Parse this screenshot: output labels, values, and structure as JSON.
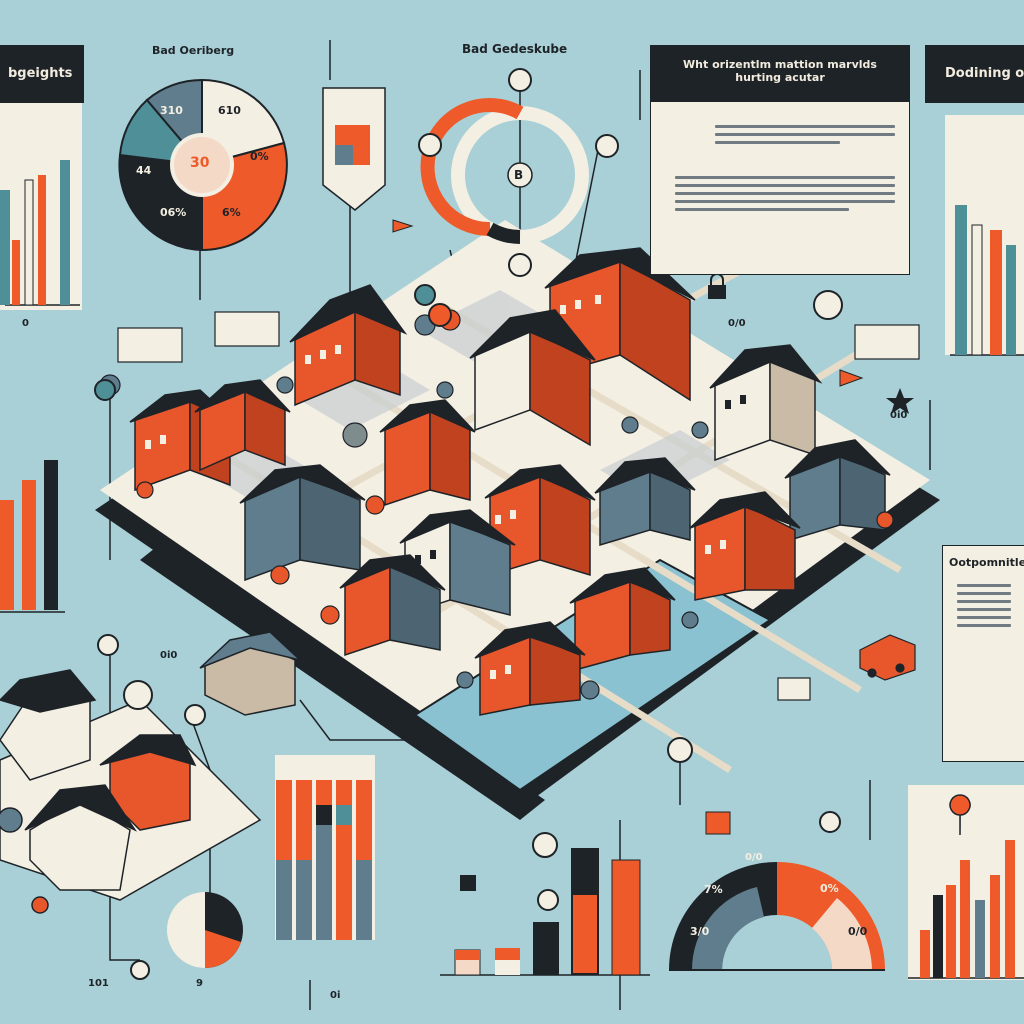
{
  "top_labels": {
    "left_pie_title": "Bad Oeriberg",
    "center_title": "Bad Gedeskube",
    "corner_left": "bgeights",
    "corner_right": "Dodining of",
    "right_section": "Ootpomnitles"
  },
  "info_card": {
    "title_line1": "Wht orizentlm mattion marvlds",
    "title_line2": "hurting acutar"
  },
  "left_pie": {
    "center": "30",
    "labels": [
      "310",
      "610",
      "44",
      "0%",
      "06%",
      "6%"
    ]
  },
  "ring": {
    "center": "B"
  },
  "semi_gauge": {
    "labels": [
      "0/0",
      "7%",
      "0%",
      "3/0",
      "0/0"
    ]
  },
  "misc_labels": {
    "small_markers": [
      "0",
      "0i0",
      "9",
      "0i",
      "0i0",
      "101",
      "0/0"
    ]
  },
  "colors": {
    "background": "#a8d0d6",
    "dark": "#1e2328",
    "orange": "#ef5a2a",
    "cream": "#f4efe3",
    "teal": "#4f8f98",
    "slate": "#5f7d8c"
  },
  "icons": [
    "pin-icon",
    "lock-icon",
    "star-icon",
    "flag-icon",
    "truck-icon",
    "info-icon"
  ]
}
